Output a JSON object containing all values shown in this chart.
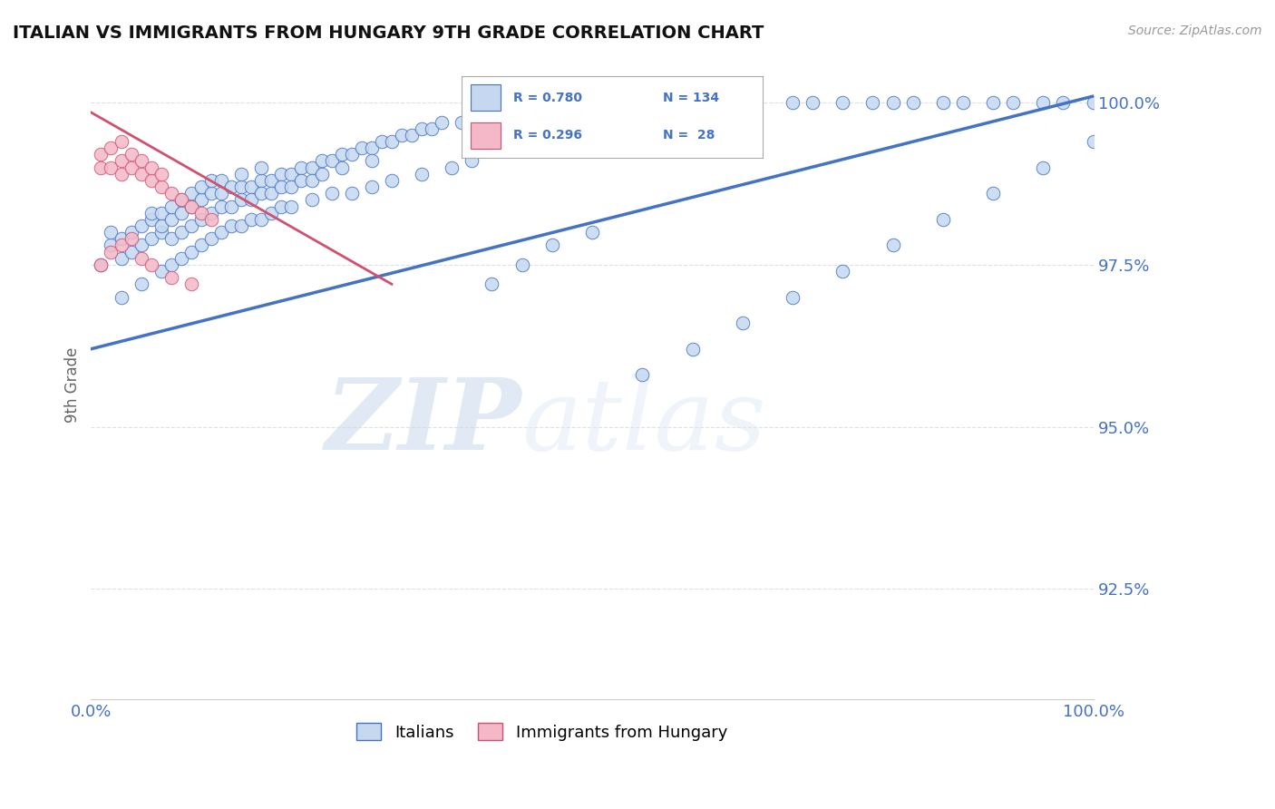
{
  "title": "ITALIAN VS IMMIGRANTS FROM HUNGARY 9TH GRADE CORRELATION CHART",
  "source_text": "Source: ZipAtlas.com",
  "ylabel": "9th Grade",
  "watermark_zip": "ZIP",
  "watermark_atlas": "atlas",
  "background_color": "#ffffff",
  "blue_fill": "#c5d8f0",
  "blue_edge": "#4472c4",
  "pink_fill": "#f4b8c8",
  "pink_edge": "#d05070",
  "axis_label_color": "#4472c4",
  "grid_color": "#cccccc",
  "R_blue": 0.78,
  "N_blue": 134,
  "R_pink": 0.296,
  "N_pink": 28,
  "xlim": [
    0.0,
    1.0
  ],
  "ylim": [
    0.908,
    1.005
  ],
  "yticks": [
    0.925,
    0.95,
    0.975,
    1.0
  ],
  "ytick_labels": [
    "92.5%",
    "95.0%",
    "97.5%",
    "100.0%"
  ],
  "blue_line_x": [
    0.0,
    1.0
  ],
  "blue_line_y": [
    0.962,
    1.001
  ],
  "pink_line_x": [
    0.0,
    0.3
  ],
  "pink_line_y": [
    0.9985,
    0.972
  ],
  "blue_x": [
    0.01,
    0.02,
    0.02,
    0.03,
    0.03,
    0.04,
    0.04,
    0.05,
    0.05,
    0.06,
    0.06,
    0.06,
    0.07,
    0.07,
    0.07,
    0.08,
    0.08,
    0.08,
    0.09,
    0.09,
    0.09,
    0.1,
    0.1,
    0.1,
    0.11,
    0.11,
    0.11,
    0.12,
    0.12,
    0.12,
    0.13,
    0.13,
    0.13,
    0.14,
    0.14,
    0.15,
    0.15,
    0.15,
    0.16,
    0.16,
    0.17,
    0.17,
    0.17,
    0.18,
    0.18,
    0.19,
    0.19,
    0.2,
    0.2,
    0.21,
    0.21,
    0.22,
    0.22,
    0.23,
    0.23,
    0.24,
    0.25,
    0.25,
    0.26,
    0.27,
    0.28,
    0.28,
    0.29,
    0.3,
    0.31,
    0.32,
    0.33,
    0.34,
    0.35,
    0.37,
    0.38,
    0.4,
    0.42,
    0.43,
    0.45,
    0.47,
    0.5,
    0.52,
    0.55,
    0.57,
    0.6,
    0.62,
    0.65,
    0.7,
    0.72,
    0.75,
    0.78,
    0.8,
    0.82,
    0.85,
    0.87,
    0.9,
    0.92,
    0.95,
    0.97,
    1.0,
    0.03,
    0.05,
    0.07,
    0.08,
    0.09,
    0.1,
    0.11,
    0.12,
    0.13,
    0.14,
    0.15,
    0.16,
    0.17,
    0.18,
    0.19,
    0.2,
    0.22,
    0.24,
    0.26,
    0.28,
    0.3,
    0.33,
    0.36,
    0.38,
    0.4,
    0.43,
    0.46,
    0.5,
    0.55,
    0.6,
    0.65,
    0.7,
    0.75,
    0.8,
    0.85,
    0.9,
    0.95,
    1.0
  ],
  "blue_y": [
    0.975,
    0.978,
    0.98,
    0.976,
    0.979,
    0.977,
    0.98,
    0.978,
    0.981,
    0.979,
    0.982,
    0.983,
    0.98,
    0.983,
    0.981,
    0.982,
    0.984,
    0.979,
    0.983,
    0.985,
    0.98,
    0.984,
    0.986,
    0.981,
    0.985,
    0.987,
    0.982,
    0.986,
    0.988,
    0.983,
    0.986,
    0.988,
    0.984,
    0.987,
    0.984,
    0.987,
    0.985,
    0.989,
    0.987,
    0.985,
    0.988,
    0.986,
    0.99,
    0.988,
    0.986,
    0.989,
    0.987,
    0.989,
    0.987,
    0.99,
    0.988,
    0.99,
    0.988,
    0.991,
    0.989,
    0.991,
    0.992,
    0.99,
    0.992,
    0.993,
    0.993,
    0.991,
    0.994,
    0.994,
    0.995,
    0.995,
    0.996,
    0.996,
    0.997,
    0.997,
    0.998,
    0.999,
    0.999,
    0.998,
    0.999,
    0.999,
    0.999,
    0.999,
    1.0,
    1.0,
    1.0,
    1.0,
    1.0,
    1.0,
    1.0,
    1.0,
    1.0,
    1.0,
    1.0,
    1.0,
    1.0,
    1.0,
    1.0,
    1.0,
    1.0,
    1.0,
    0.97,
    0.972,
    0.974,
    0.975,
    0.976,
    0.977,
    0.978,
    0.979,
    0.98,
    0.981,
    0.981,
    0.982,
    0.982,
    0.983,
    0.984,
    0.984,
    0.985,
    0.986,
    0.986,
    0.987,
    0.988,
    0.989,
    0.99,
    0.991,
    0.972,
    0.975,
    0.978,
    0.98,
    0.958,
    0.962,
    0.966,
    0.97,
    0.974,
    0.978,
    0.982,
    0.986,
    0.99,
    0.994
  ],
  "pink_x": [
    0.01,
    0.01,
    0.02,
    0.02,
    0.03,
    0.03,
    0.03,
    0.04,
    0.04,
    0.05,
    0.05,
    0.06,
    0.06,
    0.07,
    0.07,
    0.08,
    0.09,
    0.1,
    0.11,
    0.12,
    0.01,
    0.02,
    0.03,
    0.04,
    0.05,
    0.06,
    0.08,
    0.1
  ],
  "pink_y": [
    0.99,
    0.992,
    0.99,
    0.993,
    0.989,
    0.991,
    0.994,
    0.99,
    0.992,
    0.989,
    0.991,
    0.988,
    0.99,
    0.987,
    0.989,
    0.986,
    0.985,
    0.984,
    0.983,
    0.982,
    0.975,
    0.977,
    0.978,
    0.979,
    0.976,
    0.975,
    0.973,
    0.972
  ]
}
